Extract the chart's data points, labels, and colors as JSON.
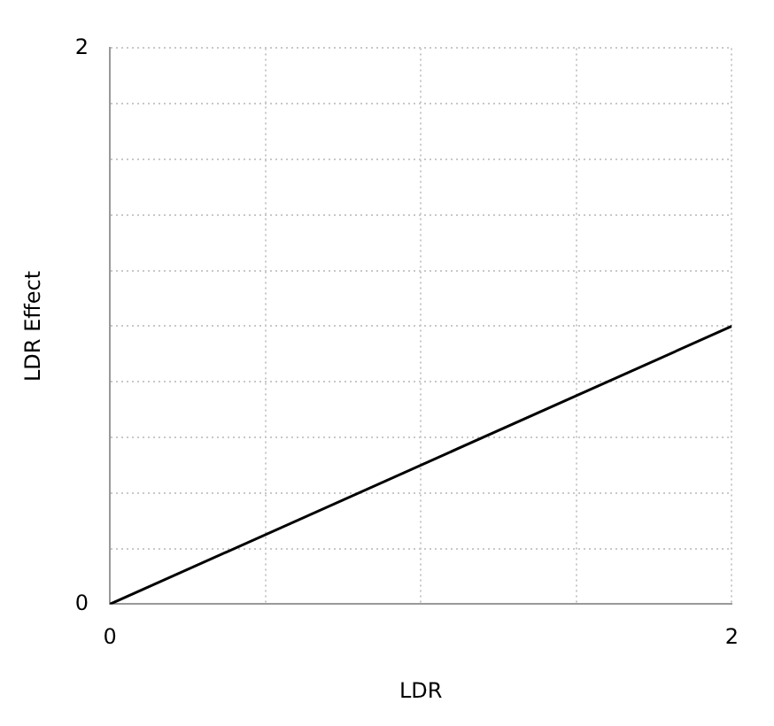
{
  "chart_data": {
    "type": "line",
    "xlabel": "LDR",
    "ylabel": "LDR Effect",
    "x": [
      0,
      2
    ],
    "series": [
      {
        "color": "#000000",
        "values": [
          0,
          1
        ]
      }
    ],
    "xlim": [
      0,
      2
    ],
    "xticks": [
      0,
      {
        "value": 0.5,
        "label": null
      },
      {
        "value": 1,
        "label": null
      },
      {
        "value": 1.5,
        "label": null
      },
      2
    ],
    "ylim": [
      0,
      2
    ],
    "yticks": [
      0,
      {
        "value": 0.2,
        "label": null
      },
      {
        "value": 0.4,
        "label": null
      },
      {
        "value": 0.6,
        "label": null
      },
      {
        "value": 0.8,
        "label": null
      },
      {
        "value": 1,
        "label": null
      },
      {
        "value": 1.2,
        "label": null
      },
      {
        "value": 1.4,
        "label": null
      },
      {
        "value": 1.6,
        "label": null
      },
      {
        "value": 1.8,
        "label": null
      },
      2
    ],
    "grid": true,
    "legend": false,
    "marker": "none",
    "line_style": "solid"
  }
}
